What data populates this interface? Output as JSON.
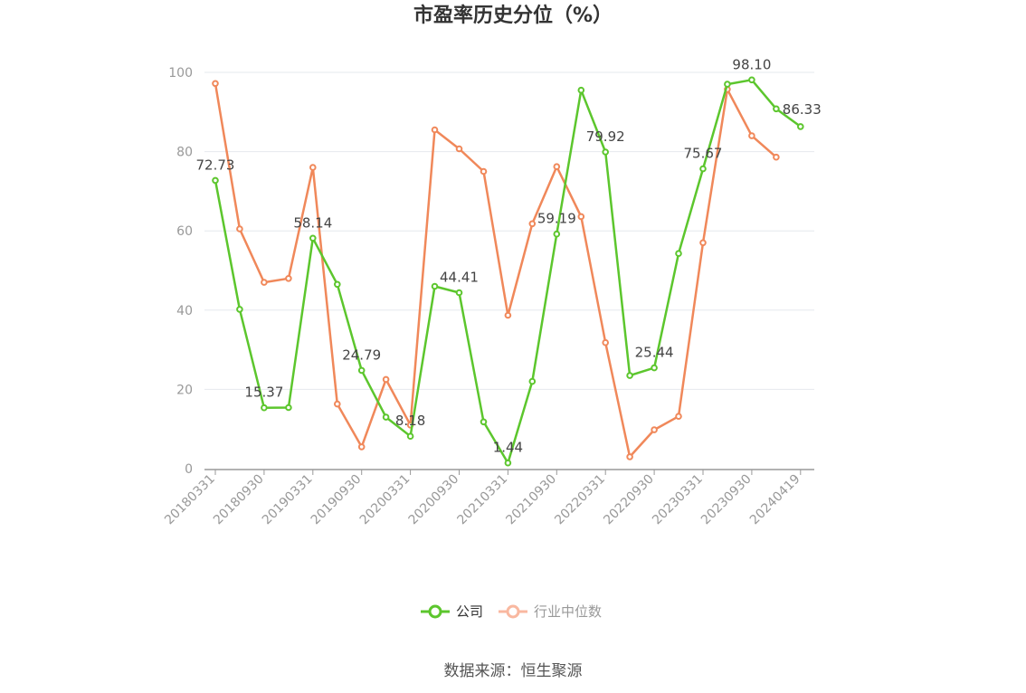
{
  "chart_data": {
    "type": "line",
    "title": "市盈率历史分位（%）",
    "ylim": [
      0,
      100
    ],
    "yticks": [
      "0",
      "20",
      "40",
      "60",
      "80",
      "100"
    ],
    "grid": true,
    "legend_position": "bottom-center",
    "x_tick_labels": [
      "20180331",
      "20180930",
      "20190331",
      "20190930",
      "20200331",
      "20200930",
      "20210331",
      "20210930",
      "20220331",
      "20220930",
      "20230331",
      "20230930",
      "20240419"
    ],
    "x": [
      "20180331",
      "20180630",
      "20180930",
      "20181231",
      "20190331",
      "20190630",
      "20190930",
      "20191231",
      "20200331",
      "20200630",
      "20200930",
      "20201231",
      "20210331",
      "20210630",
      "20210930",
      "20211231",
      "20220331",
      "20220630",
      "20220930",
      "20221231",
      "20230331",
      "20230630",
      "20230930",
      "20231231",
      "20240419"
    ],
    "series": [
      {
        "name": "公司",
        "color": "#5cc62d",
        "values": [
          72.73,
          40.2,
          15.37,
          15.4,
          58.14,
          46.5,
          24.79,
          13.0,
          8.18,
          46.0,
          44.41,
          11.8,
          1.44,
          22.0,
          59.19,
          95.5,
          79.92,
          23.5,
          25.44,
          54.3,
          75.67,
          97.0,
          98.1,
          90.8,
          86.33
        ],
        "labels": [
          "72.73",
          "",
          "15.37",
          "",
          "58.14",
          "",
          "24.79",
          "",
          "8.18",
          "",
          "44.41",
          "",
          "1.44",
          "",
          "59.19",
          "",
          "79.92",
          "",
          "25.44",
          "",
          "75.67",
          "",
          "98.10",
          "",
          "86.33"
        ]
      },
      {
        "name": "行业中位数",
        "color": "#f0885a",
        "values": [
          97.2,
          60.5,
          47.0,
          48.0,
          76.0,
          16.3,
          5.5,
          22.5,
          11.0,
          85.5,
          80.7,
          75.0,
          38.7,
          61.8,
          76.2,
          63.6,
          31.8,
          3.0,
          9.8,
          13.2,
          57.0,
          95.7,
          84.0,
          78.6,
          null
        ]
      }
    ]
  },
  "legend": {
    "company_label": "公司",
    "industry_label": "行业中位数",
    "company_color": "#5cc62d",
    "industry_color": "#f9b8a0"
  },
  "source_text": "数据来源：恒生聚源"
}
